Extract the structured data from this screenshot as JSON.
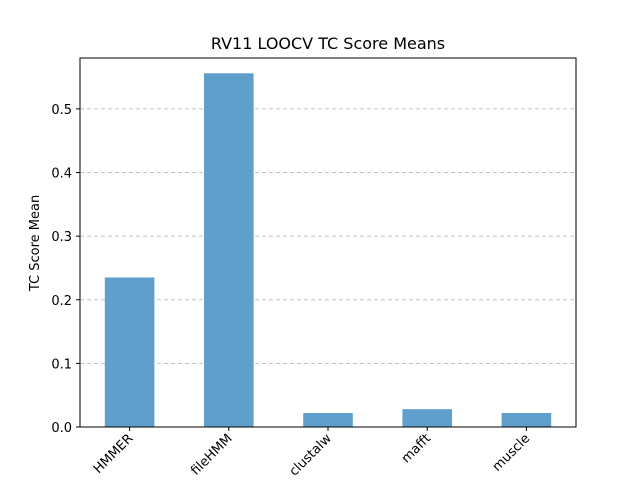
{
  "chart_data": {
    "type": "bar",
    "title": "RV11 LOOCV TC Score Means",
    "xlabel": "",
    "ylabel": "TC Score Mean",
    "categories": [
      "HMMER",
      "fileHMM",
      "clustalw",
      "mafft",
      "muscle"
    ],
    "values": [
      0.235,
      0.556,
      0.022,
      0.028,
      0.022
    ],
    "ylim": [
      0,
      0.58
    ],
    "yticks": [
      0.0,
      0.1,
      0.2,
      0.3,
      0.4,
      0.5
    ],
    "ytick_labels": [
      "0.0",
      "0.1",
      "0.2",
      "0.3",
      "0.4",
      "0.5"
    ],
    "grid": "y-dashed",
    "bar_color": "#5f9fcb",
    "legend": "none",
    "xtick_rotation": 45
  }
}
